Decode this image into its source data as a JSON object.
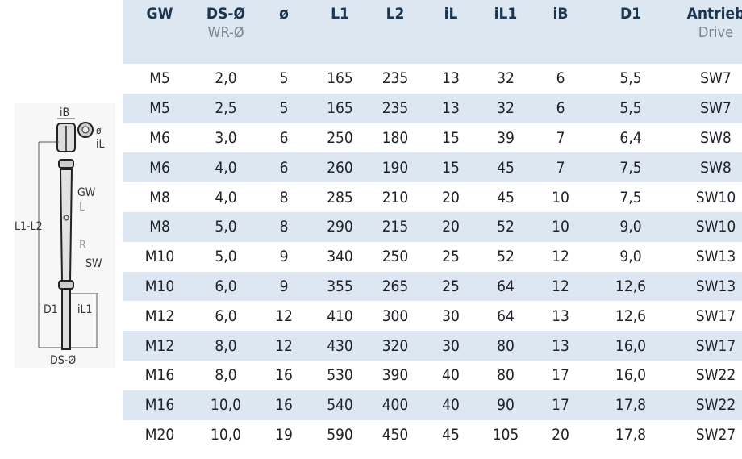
{
  "diagram": {
    "labels": {
      "iB": "iB",
      "o": "ø",
      "iL": "iL",
      "L1L2": "L1-L2",
      "GW": "GW",
      "L": "L",
      "R": "R",
      "SW": "SW",
      "D1": "D1",
      "iL1": "iL1",
      "DS": "DS-Ø"
    }
  },
  "table": {
    "headers": [
      {
        "label": "GW",
        "sub": ""
      },
      {
        "label": "DS-Ø",
        "sub": "WR-Ø"
      },
      {
        "label": "ø",
        "sub": ""
      },
      {
        "label": "L1",
        "sub": ""
      },
      {
        "label": "L2",
        "sub": ""
      },
      {
        "label": "iL",
        "sub": ""
      },
      {
        "label": "iL1",
        "sub": ""
      },
      {
        "label": "iB",
        "sub": ""
      },
      {
        "label": "D1",
        "sub": ""
      },
      {
        "label": "Antrieb",
        "sub": "Drive"
      }
    ],
    "rows": [
      [
        "M5",
        "2,0",
        "5",
        "165",
        "235",
        "13",
        "32",
        "6",
        "5,5",
        "SW7"
      ],
      [
        "M5",
        "2,5",
        "5",
        "165",
        "235",
        "13",
        "32",
        "6",
        "5,5",
        "SW7"
      ],
      [
        "M6",
        "3,0",
        "6",
        "250",
        "180",
        "15",
        "39",
        "7",
        "6,4",
        "SW8"
      ],
      [
        "M6",
        "4,0",
        "6",
        "260",
        "190",
        "15",
        "45",
        "7",
        "7,5",
        "SW8"
      ],
      [
        "M8",
        "4,0",
        "8",
        "285",
        "210",
        "20",
        "45",
        "10",
        "7,5",
        "SW10"
      ],
      [
        "M8",
        "5,0",
        "8",
        "290",
        "215",
        "20",
        "52",
        "10",
        "9,0",
        "SW10"
      ],
      [
        "M10",
        "5,0",
        "9",
        "340",
        "250",
        "25",
        "52",
        "12",
        "9,0",
        "SW13"
      ],
      [
        "M10",
        "6,0",
        "9",
        "355",
        "265",
        "25",
        "64",
        "12",
        "12,6",
        "SW13"
      ],
      [
        "M12",
        "6,0",
        "12",
        "410",
        "300",
        "30",
        "64",
        "13",
        "12,6",
        "SW17"
      ],
      [
        "M12",
        "8,0",
        "12",
        "430",
        "320",
        "30",
        "80",
        "13",
        "16,0",
        "SW17"
      ],
      [
        "M16",
        "8,0",
        "16",
        "530",
        "390",
        "40",
        "80",
        "17",
        "16,0",
        "SW22"
      ],
      [
        "M16",
        "10,0",
        "16",
        "540",
        "400",
        "40",
        "90",
        "17",
        "17,8",
        "SW22"
      ],
      [
        "M20",
        "10,0",
        "19",
        "590",
        "450",
        "45",
        "105",
        "20",
        "17,8",
        "SW27"
      ]
    ]
  }
}
